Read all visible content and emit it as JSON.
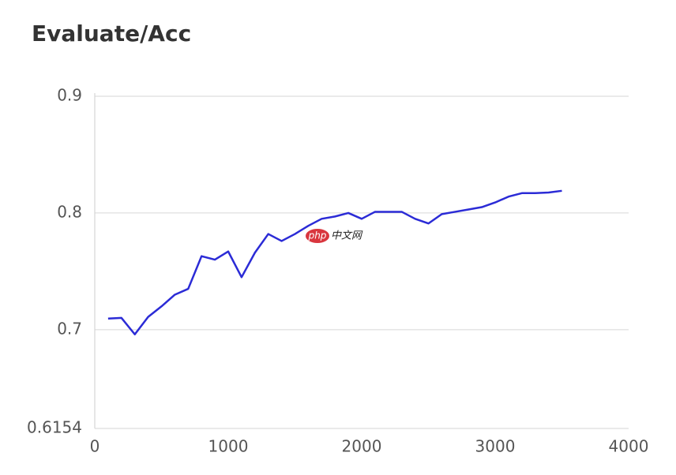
{
  "chart_data": {
    "type": "line",
    "title": "Evaluate/Acc",
    "x": [
      100,
      200,
      300,
      400,
      500,
      600,
      700,
      800,
      900,
      1000,
      1100,
      1200,
      1300,
      1400,
      1500,
      1600,
      1700,
      1800,
      1900,
      2000,
      2100,
      2200,
      2300,
      2400,
      2500,
      2600,
      2700,
      2800,
      2900,
      3000,
      3100,
      3200,
      3300,
      3400,
      3500
    ],
    "series": [
      {
        "color": "#2b2bd6",
        "values": [
          0.7095,
          0.7101,
          0.696,
          0.711,
          0.72,
          0.73,
          0.735,
          0.763,
          0.76,
          0.767,
          0.745,
          0.766,
          0.782,
          0.776,
          0.782,
          0.789,
          0.795,
          0.797,
          0.8,
          0.795,
          0.801,
          0.801,
          0.801,
          0.795,
          0.791,
          0.799,
          0.801,
          0.803,
          0.805,
          0.809,
          0.814,
          0.817,
          0.817,
          0.8175,
          0.819
        ]
      }
    ],
    "xlim": [
      0,
      4000
    ],
    "xticks": [
      0,
      1000,
      2000,
      3000,
      4000
    ],
    "ylim": [
      0.6154,
      0.9
    ],
    "yticks": [
      0.6154,
      0.7,
      0.8,
      0.9
    ],
    "grid": true,
    "annotations": [
      "php",
      "中文网"
    ]
  }
}
